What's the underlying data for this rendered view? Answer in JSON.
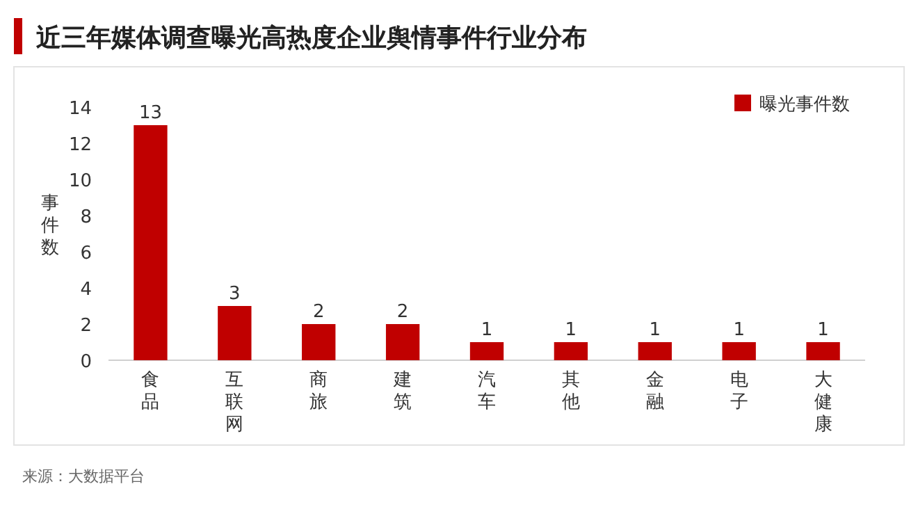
{
  "chart_data": {
    "type": "bar",
    "title": "近三年媒体调查曝光高热度企业舆情事件行业分布",
    "ylabel": "事件数",
    "categories": [
      "食品",
      "互联网",
      "商旅",
      "建筑",
      "汽车",
      "其他",
      "金融",
      "电子",
      "大健康"
    ],
    "series": [
      {
        "name": "曝光事件数",
        "color": "#c00000",
        "values": [
          13,
          3,
          2,
          2,
          1,
          1,
          1,
          1,
          1
        ]
      }
    ],
    "ylim": [
      0,
      14
    ],
    "yticks": [
      0,
      2,
      4,
      6,
      8,
      10,
      12,
      14
    ],
    "grid": false,
    "legend": "top right",
    "data_labels": true,
    "annotations": [
      "来源：大数据平台"
    ]
  }
}
